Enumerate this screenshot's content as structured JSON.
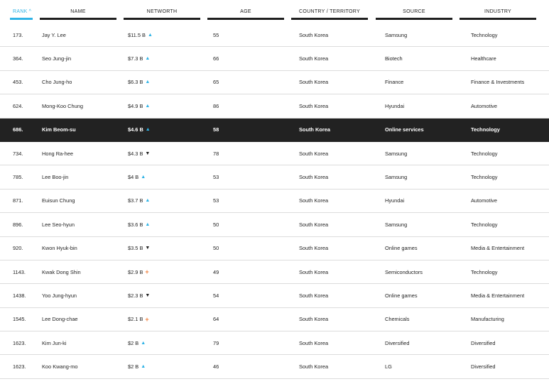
{
  "headers": {
    "rank": "RANK",
    "name": "NAME",
    "networth": "NETWORTH",
    "age": "AGE",
    "country": "COUNTRY / TERRITORY",
    "source": "SOURCE",
    "industry": "INDUSTRY"
  },
  "sort_indicator": "^",
  "colors": {
    "accent": "#2fb3e6",
    "highlight": "#222222",
    "same": "#f0803c"
  },
  "rows": [
    {
      "rank": "173.",
      "name": "Jay Y. Lee",
      "networth": "$11.5 B",
      "trend": "up",
      "age": "55",
      "country": "South Korea",
      "source": "Samsung",
      "industry": "Technology"
    },
    {
      "rank": "364.",
      "name": "Seo Jung-jin",
      "networth": "$7.3 B",
      "trend": "up",
      "age": "66",
      "country": "South Korea",
      "source": "Biotech",
      "industry": "Healthcare"
    },
    {
      "rank": "453.",
      "name": "Cho Jung-ho",
      "networth": "$6.3 B",
      "trend": "up",
      "age": "65",
      "country": "South Korea",
      "source": "Finance",
      "industry": "Finance & Investments"
    },
    {
      "rank": "624.",
      "name": "Mong-Koo Chung",
      "networth": "$4.9 B",
      "trend": "up",
      "age": "86",
      "country": "South Korea",
      "source": "Hyundai",
      "industry": "Automotive"
    },
    {
      "rank": "686.",
      "name": "Kim Beom-su",
      "networth": "$4.6 B",
      "trend": "up",
      "age": "58",
      "country": "South Korea",
      "source": "Online services",
      "industry": "Technology",
      "highlight": true
    },
    {
      "rank": "734.",
      "name": "Hong Ra-hee",
      "networth": "$4.3 B",
      "trend": "down",
      "age": "78",
      "country": "South Korea",
      "source": "Samsung",
      "industry": "Technology"
    },
    {
      "rank": "785.",
      "name": "Lee Boo-jin",
      "networth": "$4 B",
      "trend": "up",
      "age": "53",
      "country": "South Korea",
      "source": "Samsung",
      "industry": "Technology"
    },
    {
      "rank": "871.",
      "name": "Euisun Chung",
      "networth": "$3.7 B",
      "trend": "up",
      "age": "53",
      "country": "South Korea",
      "source": "Hyundai",
      "industry": "Automotive"
    },
    {
      "rank": "896.",
      "name": "Lee Seo-hyun",
      "networth": "$3.6 B",
      "trend": "up",
      "age": "50",
      "country": "South Korea",
      "source": "Samsung",
      "industry": "Technology"
    },
    {
      "rank": "920.",
      "name": "Kwon Hyuk-bin",
      "networth": "$3.5 B",
      "trend": "down",
      "age": "50",
      "country": "South Korea",
      "source": "Online games",
      "industry": "Media & Entertainment"
    },
    {
      "rank": "1143.",
      "name": "Kwak Dong Shin",
      "networth": "$2.9 B",
      "trend": "same",
      "age": "49",
      "country": "South Korea",
      "source": "Semiconductors",
      "industry": "Technology"
    },
    {
      "rank": "1438.",
      "name": "Yoo Jung-hyun",
      "networth": "$2.3 B",
      "trend": "down",
      "age": "54",
      "country": "South Korea",
      "source": "Online games",
      "industry": "Media & Entertainment"
    },
    {
      "rank": "1545.",
      "name": "Lee Dong-chae",
      "networth": "$2.1 B",
      "trend": "same",
      "age": "64",
      "country": "South Korea",
      "source": "Chemicals",
      "industry": "Manufacturing"
    },
    {
      "rank": "1623.",
      "name": "Kim Jun-ki",
      "networth": "$2 B",
      "trend": "up",
      "age": "79",
      "country": "South Korea",
      "source": "Diversified",
      "industry": "Diversified"
    },
    {
      "rank": "1623.",
      "name": "Koo Kwang-mo",
      "networth": "$2 B",
      "trend": "up",
      "age": "46",
      "country": "South Korea",
      "source": "LG",
      "industry": "Diversified"
    }
  ]
}
